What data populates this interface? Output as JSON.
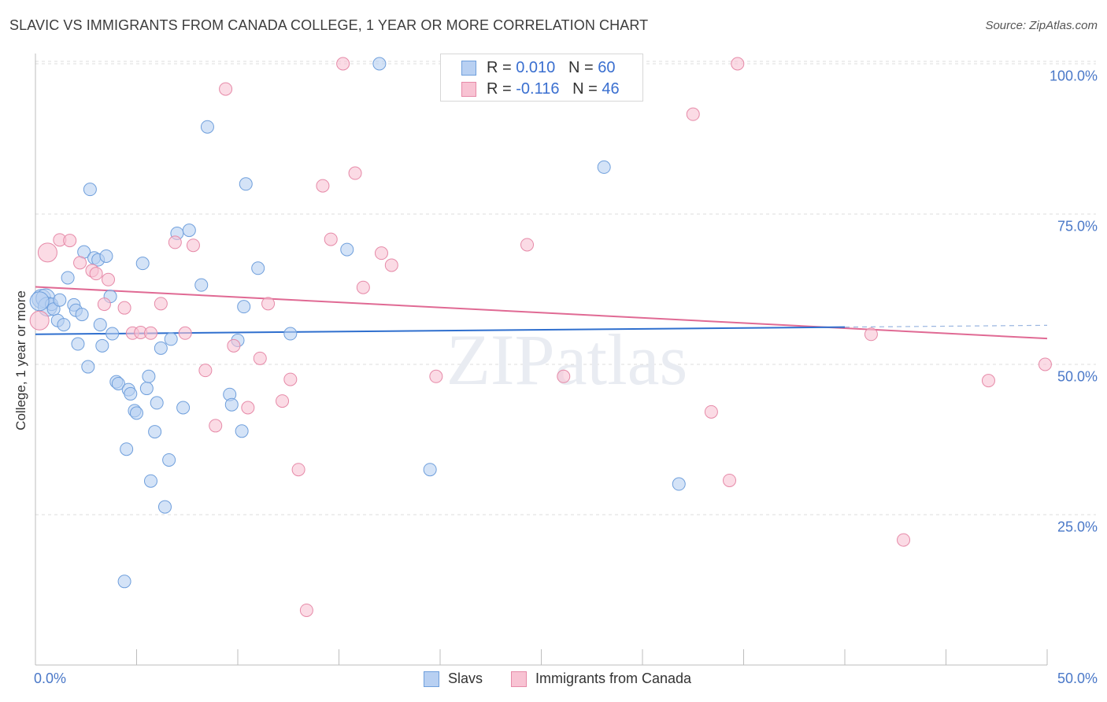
{
  "header": {
    "title": "SLAVIC VS IMMIGRANTS FROM CANADA COLLEGE, 1 YEAR OR MORE CORRELATION CHART",
    "source": "Source: ZipAtlas.com"
  },
  "watermark": "ZIPatlas",
  "legend_top": [
    {
      "r_label": "R = ",
      "r_value": "0.010",
      "n_label": "N = ",
      "n_value": "60"
    },
    {
      "r_label": "R = ",
      "r_value": "-0.116",
      "n_label": "N = ",
      "n_value": "46"
    }
  ],
  "colors": {
    "slavs_fill": "#b8d0f2",
    "slavs_stroke": "#6f9fdc",
    "slavs_line": "#2f6fce",
    "canada_fill": "#f8c3d3",
    "canada_stroke": "#e68aa8",
    "canada_line": "#e06a94",
    "tick_text": "#4a78c8",
    "grid": "#dcdcdc"
  },
  "chart_data": {
    "type": "scatter",
    "title": "SLAVIC VS IMMIGRANTS FROM CANADA COLLEGE, 1 YEAR OR MORE CORRELATION CHART",
    "xlabel": "",
    "ylabel": "College, 1 year or more",
    "xlim": [
      0,
      50
    ],
    "ylim": [
      3,
      105
    ],
    "x_tick_labels": [
      "0.0%",
      "50.0%"
    ],
    "y_ticks": [
      25,
      50,
      75,
      100
    ],
    "y_tick_labels": [
      "25.0%",
      "50.0%",
      "75.0%",
      "100.0%"
    ],
    "grid": true,
    "legend": "bottom-center",
    "series": [
      {
        "name": "Slavs",
        "r": 0.01,
        "n": 60,
        "trend": {
          "x0": 0,
          "y0": 55.0,
          "x1": 40,
          "y1": 56.2,
          "dashed_to": 50,
          "dashed_y": 56.5
        },
        "points": [
          [
            0.3,
            60.9
          ],
          [
            0.5,
            61.0
          ],
          [
            0.6,
            59.6
          ],
          [
            0.8,
            60.0
          ],
          [
            0.9,
            59.2
          ],
          [
            1.1,
            57.3
          ],
          [
            1.2,
            60.7
          ],
          [
            1.4,
            56.6
          ],
          [
            1.6,
            64.4
          ],
          [
            1.9,
            59.9
          ],
          [
            2.0,
            59.0
          ],
          [
            2.1,
            53.4
          ],
          [
            2.3,
            58.3
          ],
          [
            2.4,
            68.7
          ],
          [
            2.6,
            49.6
          ],
          [
            2.7,
            79.1
          ],
          [
            2.9,
            67.7
          ],
          [
            3.1,
            67.4
          ],
          [
            3.2,
            56.6
          ],
          [
            3.3,
            53.1
          ],
          [
            3.5,
            68.0
          ],
          [
            3.7,
            61.3
          ],
          [
            3.8,
            55.1
          ],
          [
            4.0,
            47.1
          ],
          [
            4.1,
            46.8
          ],
          [
            4.5,
            35.9
          ],
          [
            4.6,
            45.8
          ],
          [
            4.7,
            45.1
          ],
          [
            4.9,
            42.3
          ],
          [
            5.0,
            41.9
          ],
          [
            5.3,
            66.8
          ],
          [
            5.5,
            46.0
          ],
          [
            5.6,
            48.0
          ],
          [
            5.7,
            30.6
          ],
          [
            5.9,
            38.8
          ],
          [
            6.0,
            43.6
          ],
          [
            6.2,
            52.7
          ],
          [
            6.4,
            26.3
          ],
          [
            6.6,
            34.1
          ],
          [
            6.7,
            54.2
          ],
          [
            7.0,
            71.8
          ],
          [
            7.3,
            42.8
          ],
          [
            7.6,
            72.3
          ],
          [
            8.2,
            63.2
          ],
          [
            8.5,
            89.5
          ],
          [
            9.6,
            45.0
          ],
          [
            9.7,
            43.3
          ],
          [
            10.0,
            54.0
          ],
          [
            10.2,
            38.9
          ],
          [
            10.3,
            59.6
          ],
          [
            10.4,
            80.0
          ],
          [
            11.0,
            66.0
          ],
          [
            12.6,
            55.1
          ],
          [
            15.4,
            69.1
          ],
          [
            17.0,
            100.0
          ],
          [
            19.5,
            32.5
          ],
          [
            28.1,
            82.8
          ],
          [
            31.8,
            30.1
          ],
          [
            4.4,
            13.9
          ],
          [
            0.2,
            60.5
          ]
        ]
      },
      {
        "name": "Immigrants from Canada",
        "r": -0.116,
        "n": 46,
        "trend": {
          "x0": 0,
          "y0": 62.9,
          "x1": 50,
          "y1": 54.3
        },
        "points": [
          [
            0.2,
            57.3
          ],
          [
            0.6,
            68.6
          ],
          [
            1.2,
            70.7
          ],
          [
            1.7,
            70.6
          ],
          [
            2.2,
            66.9
          ],
          [
            2.8,
            65.6
          ],
          [
            3.0,
            65.1
          ],
          [
            3.4,
            60.0
          ],
          [
            3.6,
            64.1
          ],
          [
            4.4,
            59.4
          ],
          [
            4.8,
            55.2
          ],
          [
            5.2,
            55.3
          ],
          [
            5.7,
            55.2
          ],
          [
            6.2,
            60.1
          ],
          [
            6.9,
            70.3
          ],
          [
            7.4,
            55.2
          ],
          [
            7.8,
            69.8
          ],
          [
            8.4,
            49.0
          ],
          [
            8.9,
            39.8
          ],
          [
            9.4,
            95.8
          ],
          [
            9.8,
            53.1
          ],
          [
            10.5,
            42.8
          ],
          [
            11.1,
            51.0
          ],
          [
            11.5,
            60.1
          ],
          [
            12.2,
            43.9
          ],
          [
            12.6,
            47.5
          ],
          [
            13.0,
            32.5
          ],
          [
            13.4,
            9.1
          ],
          [
            14.2,
            79.7
          ],
          [
            14.6,
            70.8
          ],
          [
            15.2,
            100.0
          ],
          [
            15.8,
            81.8
          ],
          [
            16.2,
            62.8
          ],
          [
            17.1,
            68.5
          ],
          [
            17.6,
            66.5
          ],
          [
            19.8,
            48.0
          ],
          [
            24.3,
            69.9
          ],
          [
            26.1,
            48.0
          ],
          [
            32.5,
            91.6
          ],
          [
            33.4,
            42.1
          ],
          [
            34.3,
            30.7
          ],
          [
            34.7,
            100.0
          ],
          [
            41.3,
            55.0
          ],
          [
            42.9,
            20.8
          ],
          [
            47.1,
            47.3
          ],
          [
            49.9,
            50.0
          ]
        ]
      }
    ]
  }
}
